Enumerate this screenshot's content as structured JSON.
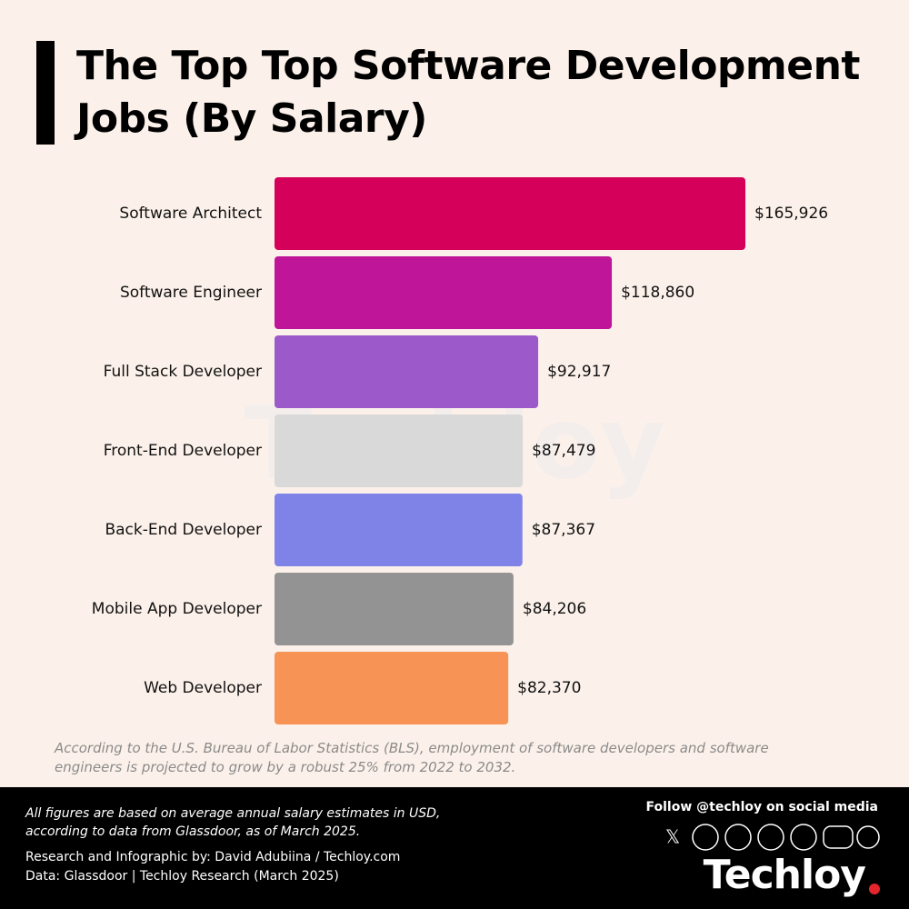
{
  "chart_data": {
    "type": "bar",
    "orientation": "horizontal",
    "title": "The Top Top Software Development Jobs (By Salary)",
    "categories": [
      "Software Architect",
      "Software Engineer",
      "Full Stack Developer",
      "Front-End Developer",
      "Back-End Developer",
      "Mobile App Developer",
      "Web Developer"
    ],
    "values": [
      165926,
      118860,
      92917,
      87479,
      87367,
      84206,
      82370
    ],
    "value_labels": [
      "$165,926",
      "$118,860",
      "$92,917",
      "$87,479",
      "$87,367",
      "$84,206",
      "$82,370"
    ],
    "colors": [
      "#d4005a",
      "#be1599",
      "#9b59c9",
      "#d9d9d9",
      "#7f83e8",
      "#939393",
      "#f79455"
    ]
  },
  "watermark": "Techloy",
  "footnote": "According to the U.S. Bureau of Labor Statistics (BLS), employment of software developers and software engineers is projected to grow by a robust 25% from 2022 to 2032.",
  "footer": {
    "note": "All figures are based on average annual salary estimates in USD, according to data from Glassdoor, as of March 2025.",
    "credit": "Research and Infographic by: David Adubiina / Techloy.com",
    "source": "Data: Glassdoor | Techloy Research (March 2025)",
    "social": "Follow @techloy on social media",
    "logo": "Techloy"
  }
}
